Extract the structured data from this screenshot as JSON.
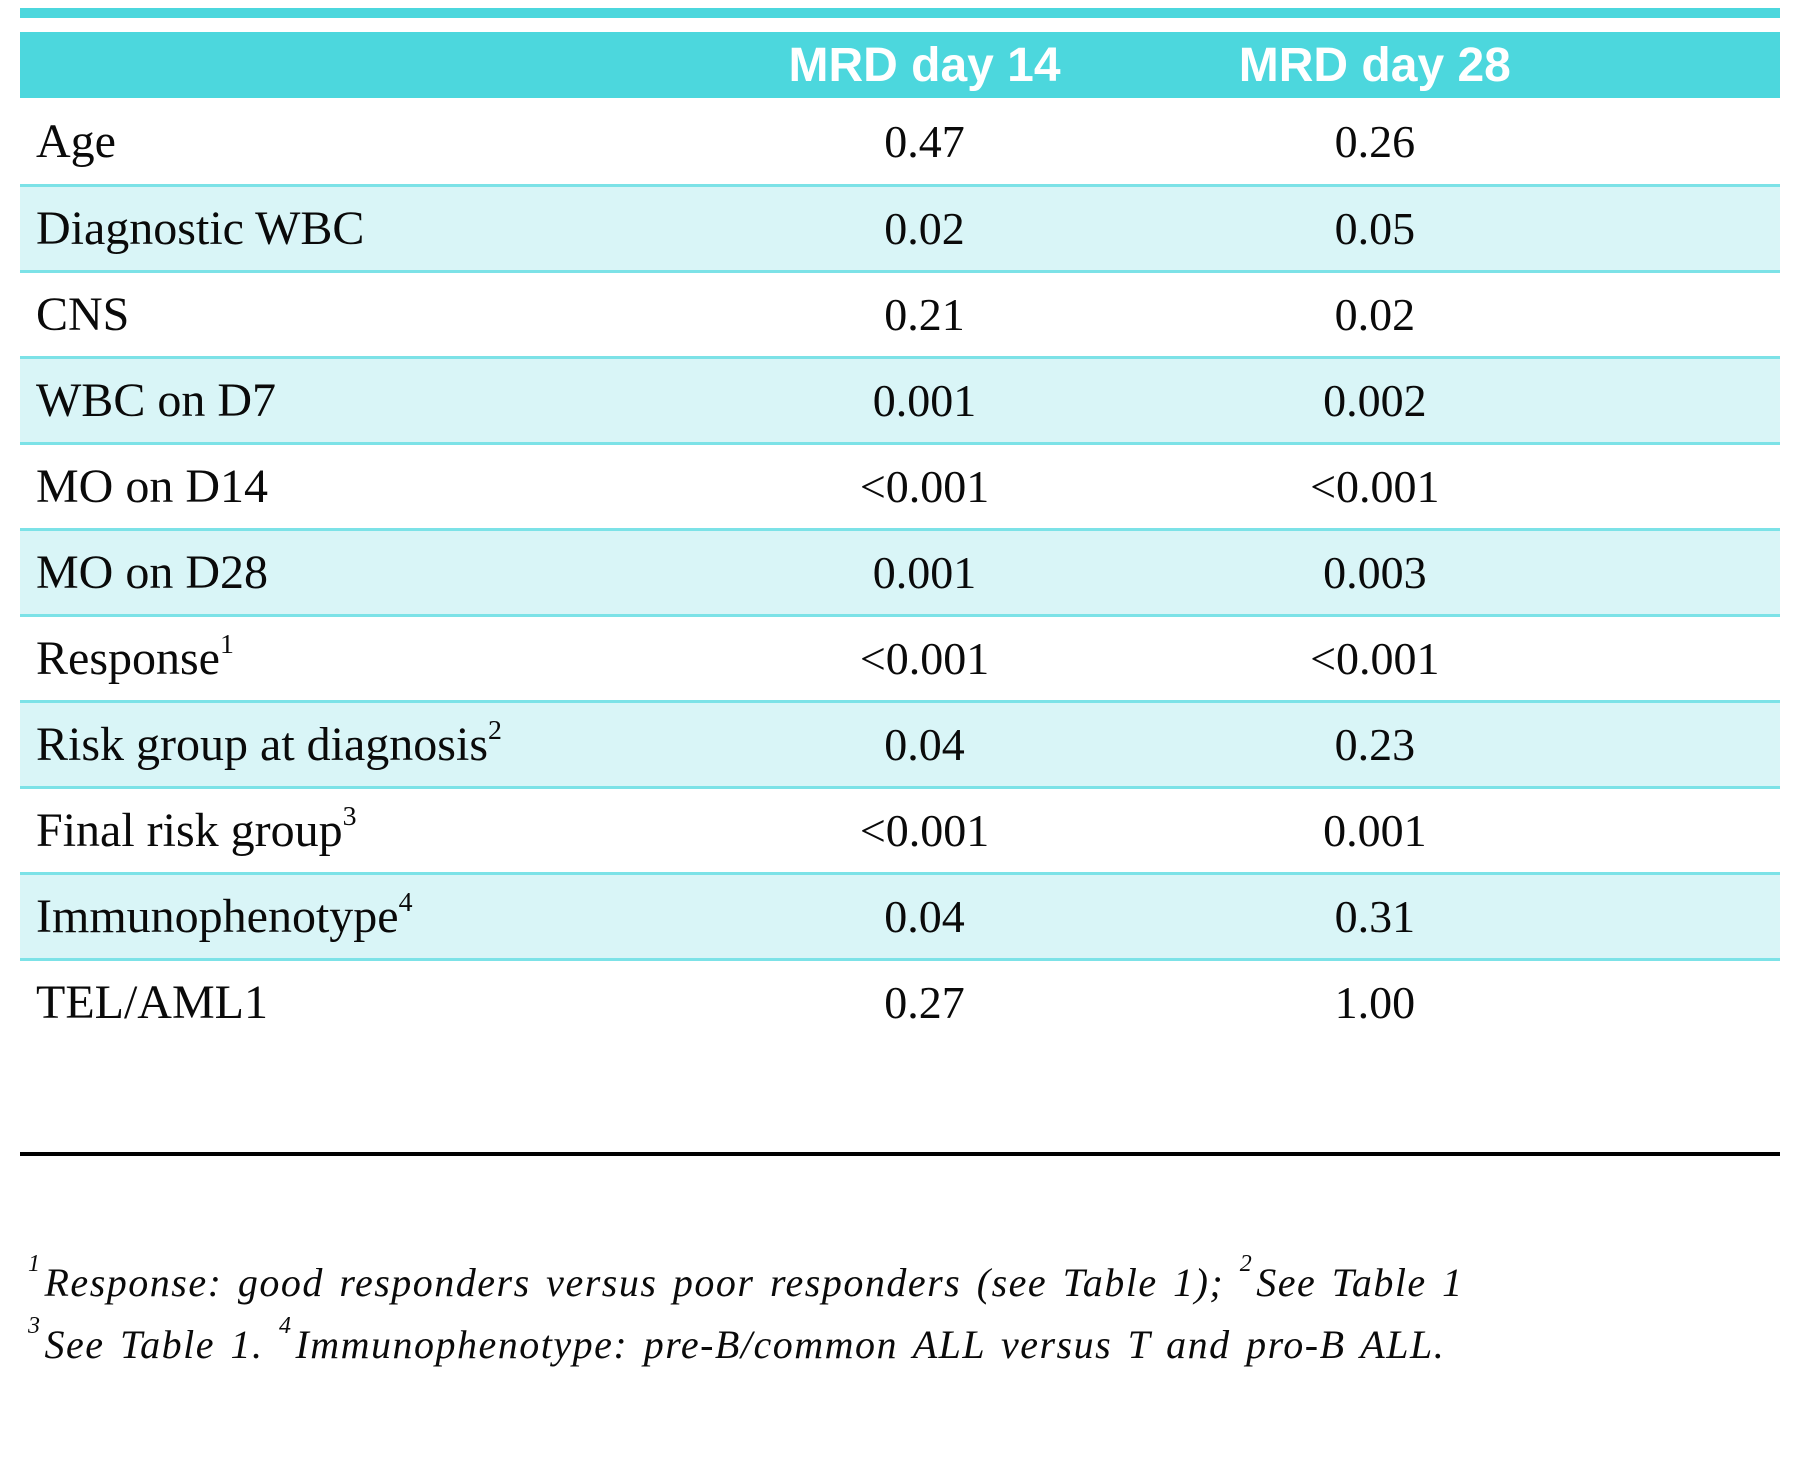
{
  "table": {
    "header": {
      "col_mrd14": "MRD day 14",
      "col_mrd28": "MRD day 28"
    },
    "rows": [
      {
        "label": "Age",
        "sup": "",
        "mrd14": "0.47",
        "mrd28": "0.26"
      },
      {
        "label": "Diagnostic WBC",
        "sup": "",
        "mrd14": "0.02",
        "mrd28": "0.05"
      },
      {
        "label": "CNS",
        "sup": "",
        "mrd14": "0.21",
        "mrd28": "0.02"
      },
      {
        "label": "WBC on D7",
        "sup": "",
        "mrd14": "0.001",
        "mrd28": "0.002"
      },
      {
        "label": "MO on D14",
        "sup": "",
        "mrd14": "<0.001",
        "mrd28": "<0.001"
      },
      {
        "label": "MO on D28",
        "sup": "",
        "mrd14": "0.001",
        "mrd28": "0.003"
      },
      {
        "label": "Response",
        "sup": "1",
        "mrd14": "<0.001",
        "mrd28": "<0.001"
      },
      {
        "label": "Risk group at diagnosis",
        "sup": "2",
        "mrd14": "0.04",
        "mrd28": "0.23"
      },
      {
        "label": "Final risk group",
        "sup": "3",
        "mrd14": "<0.001",
        "mrd28": "0.001"
      },
      {
        "label": "Immunophenotype",
        "sup": "4",
        "mrd14": "0.04",
        "mrd28": "0.31"
      },
      {
        "label": "TEL/AML1",
        "sup": "",
        "mrd14": "0.27",
        "mrd28": "1.00"
      }
    ]
  },
  "footnotes": {
    "line1": {
      "seg1_sup": "1",
      "seg1_text": "Response: good responders versus poor responders (see Table 1); ",
      "seg2_sup": "2",
      "seg2_text": "See Table 1"
    },
    "line2": {
      "seg1_sup": "3",
      "seg1_text": "See Table 1. ",
      "seg2_sup": "4",
      "seg2_text": "Immunophenotype: pre-B/common ALL versus T and pro-B ALL."
    }
  },
  "colors": {
    "header_bg": "#4cd7dd",
    "row_alt_bg": "#d9f5f7",
    "separator": "#7ce2e7",
    "divider": "#000000"
  }
}
